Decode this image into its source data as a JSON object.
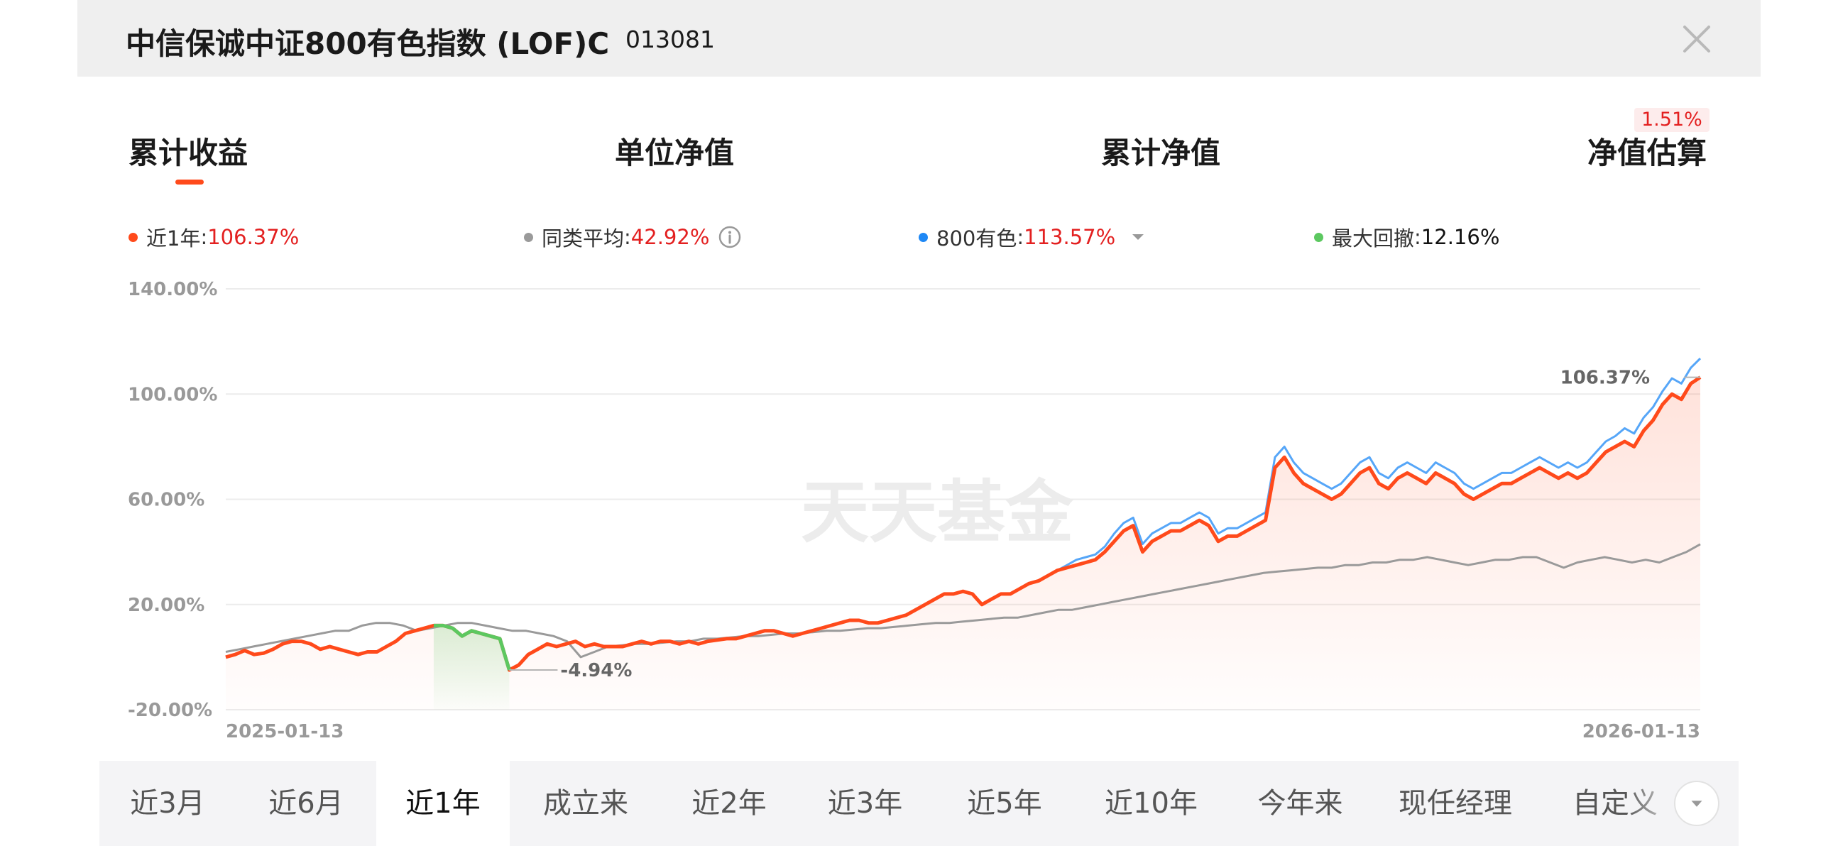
{
  "header": {
    "title": "中信保诚中证800有色指数 (LOF)C",
    "code": "013081",
    "close_icon": "close-icon"
  },
  "metric_tabs": [
    {
      "label": "累计收益",
      "active": true
    },
    {
      "label": "单位净值",
      "active": false
    },
    {
      "label": "累计净值",
      "active": false
    },
    {
      "label": "净值估算",
      "active": false,
      "badge": "1.51%"
    }
  ],
  "legend": [
    {
      "name": "近1年",
      "value": "106.37%",
      "color": "#ff4a1b"
    },
    {
      "name": "同类平均",
      "value": "42.92%",
      "color": "#9a9a9a",
      "icon": "info-icon"
    },
    {
      "name": "800有色",
      "value": "113.57%",
      "color": "#1e88f5",
      "icon": "caret-down-icon"
    },
    {
      "name": "最大回撤",
      "value": "12.16%",
      "color": "#5cc860"
    }
  ],
  "chart_data": {
    "type": "line",
    "y_tick_labels": [
      "140.00%",
      "100.00%",
      "60.00%",
      "20.00%",
      "-20.00%"
    ],
    "y_ticks": [
      140,
      100,
      60,
      20,
      -20
    ],
    "ylim": [
      -20,
      140
    ],
    "x_tick_labels": [
      "2025-01-13",
      "2026-01-13"
    ],
    "watermark": "天天基金",
    "grid": true,
    "series": [
      {
        "name": "近1年",
        "color": "#ff4a1b",
        "values": [
          0.0,
          1.0,
          2.5,
          1.0,
          1.5,
          3.0,
          5.0,
          6.0,
          6.0,
          5.0,
          3.0,
          4.0,
          3.0,
          2.0,
          1.0,
          2.0,
          2.0,
          4.0,
          6.0,
          9.0,
          10.0,
          11.0,
          12.0,
          12.0,
          11.0,
          8.0,
          10.0,
          9.0,
          8.0,
          7.0,
          -4.9,
          -3.0,
          1.0,
          3.0,
          5.0,
          4.0,
          5.0,
          6.0,
          4.0,
          5.0,
          4.0,
          4.0,
          4.0,
          5.0,
          6.0,
          5.0,
          6.0,
          6.0,
          5.0,
          6.0,
          5.0,
          6.0,
          6.5,
          7.0,
          7.0,
          8.0,
          9.0,
          10.0,
          10.0,
          9.0,
          8.0,
          9.0,
          10.0,
          11.0,
          12.0,
          13.0,
          14.0,
          14.0,
          13.0,
          13.0,
          14.0,
          15.0,
          16.0,
          18.0,
          20.0,
          22.0,
          24.0,
          24.0,
          25.0,
          24.0,
          20.0,
          22.0,
          24.0,
          24.0,
          26.0,
          28.0,
          29.0,
          31.0,
          33.0,
          34.0,
          35.0,
          36.0,
          37.0,
          40.0,
          44.0,
          48.0,
          50.0,
          40.0,
          44.0,
          46.0,
          48.0,
          48.0,
          50.0,
          52.0,
          50.0,
          44.0,
          46.0,
          46.0,
          48.0,
          50.0,
          52.0,
          72.0,
          76.0,
          70.0,
          66.0,
          64.0,
          62.0,
          60.0,
          62.0,
          66.0,
          70.0,
          72.0,
          66.0,
          64.0,
          68.0,
          70.0,
          68.0,
          66.0,
          70.0,
          68.0,
          66.0,
          62.0,
          60.0,
          62.0,
          64.0,
          66.0,
          66.0,
          68.0,
          70.0,
          72.0,
          70.0,
          68.0,
          70.0,
          68.0,
          70.0,
          74.0,
          78.0,
          80.0,
          82.0,
          80.0,
          86.0,
          90.0,
          96.0,
          100.0,
          98.0,
          104.0,
          106.37
        ]
      },
      {
        "name": "800有色",
        "color": "#1e88f5",
        "values": [
          0.0,
          1.0,
          2.5,
          1.0,
          1.5,
          3.0,
          5.0,
          6.0,
          6.0,
          5.0,
          3.0,
          4.0,
          3.0,
          2.0,
          1.0,
          2.0,
          2.0,
          4.0,
          6.0,
          9.0,
          10.0,
          11.0,
          12.0,
          12.0,
          11.0,
          8.0,
          10.0,
          9.0,
          8.0,
          7.0,
          -4.9,
          -3.0,
          1.0,
          3.0,
          5.0,
          4.0,
          5.0,
          6.0,
          4.0,
          5.0,
          4.0,
          4.0,
          4.0,
          5.0,
          6.0,
          5.0,
          6.0,
          6.0,
          5.0,
          6.0,
          5.0,
          6.0,
          6.5,
          7.0,
          7.0,
          8.0,
          9.0,
          10.0,
          10.0,
          9.0,
          8.0,
          9.0,
          10.0,
          11.0,
          12.0,
          13.0,
          14.0,
          14.0,
          13.0,
          13.0,
          14.0,
          15.0,
          16.0,
          18.0,
          20.0,
          22.0,
          24.0,
          24.0,
          25.0,
          24.0,
          20.0,
          22.0,
          24.0,
          24.0,
          26.0,
          28.0,
          29.0,
          31.0,
          33.0,
          35.0,
          37.0,
          38.0,
          39.0,
          42.0,
          47.0,
          51.0,
          53.0,
          43.0,
          47.0,
          49.0,
          51.0,
          51.0,
          53.0,
          55.0,
          53.0,
          47.0,
          49.0,
          49.0,
          51.0,
          53.0,
          55.0,
          76.0,
          80.0,
          74.0,
          70.0,
          68.0,
          66.0,
          64.0,
          66.0,
          70.0,
          74.0,
          76.0,
          70.0,
          68.0,
          72.0,
          74.0,
          72.0,
          70.0,
          74.0,
          72.0,
          70.0,
          66.0,
          64.0,
          66.0,
          68.0,
          70.0,
          70.0,
          72.0,
          74.0,
          76.0,
          74.0,
          72.0,
          74.0,
          72.0,
          74.0,
          78.0,
          82.0,
          84.0,
          87.0,
          85.0,
          91.0,
          95.0,
          101.0,
          106.0,
          104.0,
          110.0,
          113.57
        ]
      },
      {
        "name": "同类平均",
        "color": "#9a9a9a",
        "values": [
          2.0,
          3.0,
          4.0,
          5.0,
          6.0,
          7.0,
          8.0,
          9.0,
          10.0,
          10.0,
          12.0,
          13.0,
          13.0,
          12.0,
          10.0,
          11.0,
          12.0,
          13.0,
          13.0,
          12.0,
          11.0,
          10.0,
          10.0,
          9.0,
          8.0,
          6.0,
          0.0,
          2.0,
          4.0,
          4.5,
          5.0,
          5.0,
          5.5,
          6.0,
          6.0,
          7.0,
          7.0,
          7.5,
          8.0,
          8.0,
          8.5,
          9.0,
          9.0,
          9.5,
          10.0,
          10.0,
          10.5,
          11.0,
          11.0,
          11.5,
          12.0,
          12.5,
          13.0,
          13.0,
          13.5,
          14.0,
          14.5,
          15.0,
          15.0,
          16.0,
          17.0,
          18.0,
          18.0,
          19.0,
          20.0,
          21.0,
          22.0,
          23.0,
          24.0,
          25.0,
          26.0,
          27.0,
          28.0,
          29.0,
          30.0,
          31.0,
          32.0,
          32.5,
          33.0,
          33.5,
          34.0,
          34.0,
          35.0,
          35.0,
          36.0,
          36.0,
          37.0,
          37.0,
          38.0,
          37.0,
          36.0,
          35.0,
          36.0,
          37.0,
          37.0,
          38.0,
          38.0,
          36.0,
          34.0,
          36.0,
          37.0,
          38.0,
          37.0,
          36.0,
          37.0,
          36.0,
          38.0,
          40.0,
          42.92
        ]
      }
    ],
    "drawdown": {
      "name": "最大回撤",
      "value": "12.16%",
      "color": "#5cc860"
    },
    "annotations": [
      {
        "label": "106.37%",
        "series": "近1年",
        "at": "end"
      },
      {
        "label": "-4.94%",
        "series": "近1年",
        "at": "min"
      }
    ]
  },
  "range_tabs": [
    {
      "label": "近3月",
      "active": false
    },
    {
      "label": "近6月",
      "active": false
    },
    {
      "label": "近1年",
      "active": true
    },
    {
      "label": "成立来",
      "active": false
    },
    {
      "label": "近2年",
      "active": false
    },
    {
      "label": "近3年",
      "active": false
    },
    {
      "label": "近5年",
      "active": false
    },
    {
      "label": "近10年",
      "active": false
    },
    {
      "label": "今年来",
      "active": false
    },
    {
      "label": "现任经理",
      "active": false
    },
    {
      "label": "自定义",
      "active": false
    }
  ],
  "range_more_icon": "chevron-down-icon"
}
